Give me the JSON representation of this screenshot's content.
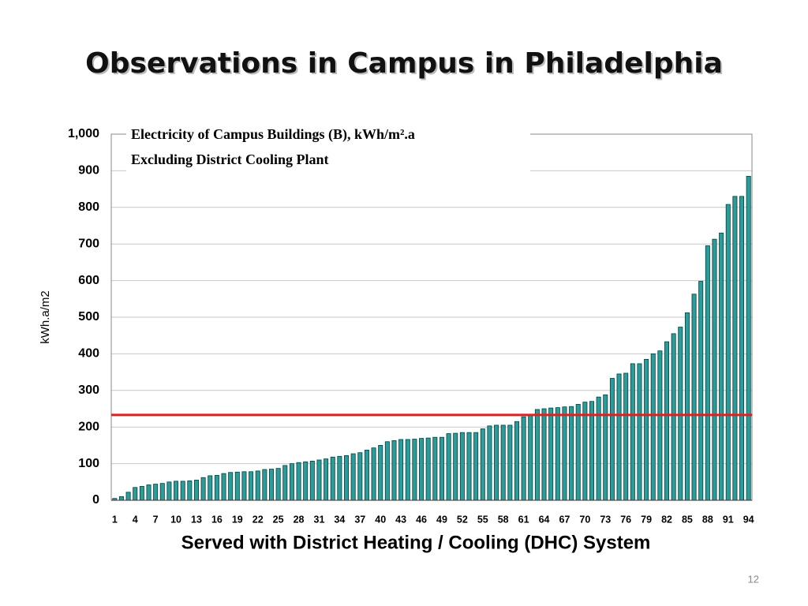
{
  "slide_title": "Observations in Campus in Philadelphia",
  "page_number": "12",
  "chart_data": {
    "type": "bar",
    "title": "Electricity of Campus Buildings (B),  kWh/m².a",
    "subtitle": "Excluding District Cooling Plant",
    "x_label": "Served with District Heating / Cooling (DHC) System",
    "y_label": "kWh.a/m2",
    "categories": [
      1,
      null,
      null,
      4,
      null,
      null,
      7,
      null,
      null,
      10,
      null,
      null,
      13,
      null,
      null,
      16,
      null,
      null,
      19,
      null,
      null,
      22,
      null,
      null,
      25,
      null,
      null,
      28,
      null,
      null,
      31,
      null,
      null,
      34,
      null,
      null,
      37,
      null,
      null,
      40,
      null,
      null,
      43,
      null,
      null,
      46,
      null,
      null,
      49,
      null,
      null,
      52,
      null,
      null,
      55,
      null,
      null,
      58,
      null,
      null,
      61,
      null,
      null,
      64,
      null,
      null,
      67,
      null,
      null,
      70,
      null,
      null,
      73,
      null,
      null,
      76,
      null,
      null,
      79,
      null,
      null,
      82,
      null,
      null,
      85,
      null,
      null,
      88,
      null,
      null,
      91,
      null,
      null,
      94
    ],
    "values": [
      5,
      10,
      22,
      35,
      38,
      42,
      44,
      46,
      50,
      52,
      52,
      53,
      55,
      62,
      67,
      68,
      73,
      76,
      77,
      78,
      78,
      80,
      84,
      85,
      87,
      95,
      100,
      103,
      105,
      107,
      110,
      113,
      118,
      120,
      122,
      127,
      130,
      137,
      143,
      150,
      160,
      163,
      166,
      166,
      167,
      169,
      170,
      172,
      172,
      182,
      183,
      185,
      185,
      185,
      195,
      203,
      205,
      205,
      205,
      215,
      228,
      232,
      248,
      250,
      252,
      253,
      255,
      256,
      262,
      268,
      270,
      282,
      288,
      333,
      345,
      347,
      373,
      373,
      385,
      400,
      408,
      433,
      455,
      473,
      512,
      563,
      598,
      695,
      713,
      730,
      808,
      830,
      830,
      885
    ],
    "color": "#2a9d9a",
    "reference_line": {
      "value": 233,
      "color": "#e41e1e"
    },
    "ylim": [
      0,
      1000
    ],
    "yticks": [
      0,
      100,
      200,
      300,
      400,
      500,
      600,
      700,
      800,
      900,
      {
        "value": 1000,
        "label": "1,000"
      }
    ],
    "grid": true
  }
}
